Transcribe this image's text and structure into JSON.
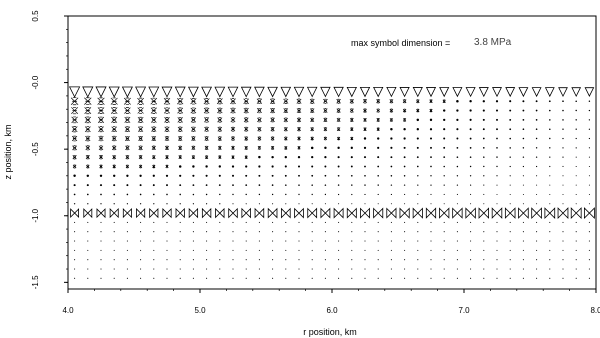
{
  "chart_data": {
    "type": "scatter",
    "title": "",
    "xlabel": "r position, km",
    "ylabel": "z position, km",
    "xlim": [
      4.0,
      8.0
    ],
    "ylim": [
      -1.55,
      0.5
    ],
    "xticks": [
      4.0,
      5.0,
      6.0,
      7.0,
      8.0
    ],
    "xtick_labels": [
      "4.0",
      "5.0",
      "6.0",
      "7.0",
      "8.0"
    ],
    "yticks": [
      0.5,
      0.0,
      -0.5,
      -1.0,
      -1.5
    ],
    "ytick_labels": [
      "0.5",
      "-0.0",
      "-0.5",
      "-1.0",
      "-1.5"
    ],
    "grid": false,
    "annotation": {
      "label": "max symbol dimension =",
      "value": "3.8 MPa"
    },
    "marker": "stress-symbol",
    "x_start": 4.05,
    "x_step": 0.1,
    "x_count": 40,
    "z_rows": [
      -0.07,
      -0.14,
      -0.21,
      -0.28,
      -0.35,
      -0.42,
      -0.49,
      -0.56,
      -0.63,
      -0.7,
      -0.77,
      -0.84,
      -0.91,
      -0.98,
      -1.05,
      -1.12,
      -1.19,
      -1.26,
      -1.33,
      -1.4,
      -1.47
    ]
  }
}
